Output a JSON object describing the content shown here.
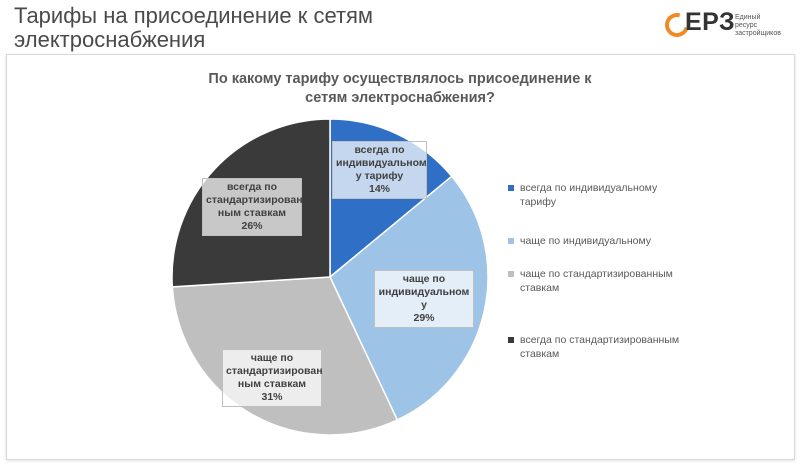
{
  "page": {
    "title": "Тарифы на присоединение к сетям электроснабжения"
  },
  "logo": {
    "abbr": "ЕРЗ",
    "subtitle": "Единый\nресурс\nзастройщиков",
    "accent": "#f08a24"
  },
  "chart_data": {
    "type": "pie",
    "title": "По какому тарифу осуществлялось присоединение к сетям электроснабжения?",
    "legend_position": "right",
    "start_angle_deg": 0,
    "direction": "clockwise",
    "slices": [
      {
        "name": "всегда по индивидуальному тарифу",
        "label": "всегда по индивидуальном у тарифу",
        "value": 14,
        "value_label": "14%",
        "color": "#2f6fc5"
      },
      {
        "name": "чаще по индивидуальному",
        "label": "чаще по индивидуальном у",
        "value": 29,
        "value_label": "29%",
        "color": "#9dc3e6"
      },
      {
        "name": "чаще по стандартизированным ставкам",
        "label": "чаще по стандартизирован ным ставкам",
        "value": 31,
        "value_label": "31%",
        "color": "#bfbfbf"
      },
      {
        "name": "всегда по стандартизированным ставкам",
        "label": "всегда по стандартизирован ным ставкам",
        "value": 26,
        "value_label": "26%",
        "color": "#3a3a3a"
      }
    ]
  }
}
